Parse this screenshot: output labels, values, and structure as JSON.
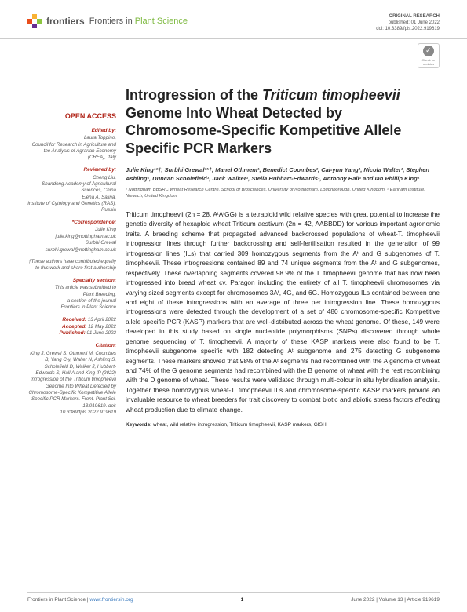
{
  "header": {
    "logo_text": "frontiers",
    "journal_prefix": "Frontiers in ",
    "journal_name": "Plant Science",
    "article_type": "ORIGINAL RESEARCH",
    "published": "published: 01 June 2022",
    "doi": "doi: 10.3389/fpls.2022.919619",
    "check_label": "Check for updates"
  },
  "sidebar": {
    "open_access": "OPEN ACCESS",
    "edited_by_heading": "Edited by:",
    "edited_by_name": "Laura Toppino,",
    "edited_by_affil": "Council for Research in Agriculture and the Analysis of Agrarian Economy (CREA), Italy",
    "reviewed_by_heading": "Reviewed by:",
    "rev1_name": "Cheng Liu,",
    "rev1_affil": "Shandong Academy of Agricultural Sciences, China",
    "rev2_name": "Elena A. Salina,",
    "rev2_affil": "Institute of Cytology and Genetics (RAS), Russia",
    "correspondence_heading": "*Correspondence:",
    "corr1_name": "Julie King",
    "corr1_email": "julie.king@nottingham.ac.uk",
    "corr2_name": "Surbhi Grewal",
    "corr2_email": "surbhi.grewal@nottingham.ac.uk",
    "contrib_note": "†These authors have contributed equally to this work and share first authorship",
    "specialty_heading": "Specialty section:",
    "specialty_text1": "This article was submitted to",
    "specialty_text2": "Plant Breeding,",
    "specialty_text3": "a section of the journal",
    "specialty_text4": "Frontiers in Plant Science",
    "received_label": "Received:",
    "received_date": "13 April 2022",
    "accepted_label": "Accepted:",
    "accepted_date": "12 May 2022",
    "published_label": "Published:",
    "published_date": "01 June 2022",
    "citation_heading": "Citation:",
    "citation_text": "King J, Grewal S, Othmeni M, Coombes B, Yang C-y, Walter N, Ashling S, Scholefield D, Walker J, Hubbart-Edwards S, Hall A and King IP (2022) Introgression of the Triticum timopheevii Genome Into Wheat Detected by Chromosome-Specific Kompetitive Allele Specific PCR Markers. Front. Plant Sci. 13:919619. doi: 10.3389/fpls.2022.919619"
  },
  "article": {
    "title_1": "Introgression of the ",
    "title_em1": "Triticum timopheevii",
    "title_2": " Genome Into Wheat Detected by Chromosome-Specific Kompetitive Allele Specific PCR Markers",
    "authors": "Julie King¹*†, Surbhi Grewal¹*†, Manel Othmeni¹, Benedict Coombes², Cai-yun Yang¹, Nicola Walter¹, Stephen Ashling¹, Duncan Scholefield¹, Jack Walker¹, Stella Hubbart-Edwards¹, Anthony Hall² and Ian Phillip King¹",
    "affil1": "¹ Nottingham BBSRC Wheat Research Centre, School of Biosciences, University of Nottingham, Loughborough, United Kingdom, ² Earlham Institute, Norwich, United Kingdom",
    "abstract": "Triticum timopheevii (2n = 28, AᵗAᵗGG) is a tetraploid wild relative species with great potential to increase the genetic diversity of hexaploid wheat Triticum aestivum (2n = 42, AABBDD) for various important agronomic traits. A breeding scheme that propagated advanced backcrossed populations of wheat-T. timopheevii introgression lines through further backcrossing and self-fertilisation resulted in the generation of 99 introgression lines (ILs) that carried 309 homozygous segments from the Aᵗ and G subgenomes of T. timopheevii. These introgressions contained 89 and 74 unique segments from the Aᵗ and G subgenomes, respectively. These overlapping segments covered 98.9% of the T. timopheevii genome that has now been introgressed into bread wheat cv. Paragon including the entirety of all T. timopheevii chromosomes via varying sized segments except for chromosomes 3Aᵗ, 4G, and 6G. Homozygous ILs contained between one and eight of these introgressions with an average of three per introgression line. These homozygous introgressions were detected through the development of a set of 480 chromosome-specific Kompetitive allele specific PCR (KASP) markers that are well-distributed across the wheat genome. Of these, 149 were developed in this study based on single nucleotide polymorphisms (SNPs) discovered through whole genome sequencing of T. timopheevii. A majority of these KASP markers were also found to be T. timopheevii subgenome specific with 182 detecting Aᵗ subgenome and 275 detecting G subgenome segments. These markers showed that 98% of the Aᵗ segments had recombined with the A genome of wheat and 74% of the G genome segments had recombined with the B genome of wheat with the rest recombining with the D genome of wheat. These results were validated through multi-colour in situ hybridisation analysis. Together these homozygous wheat-T. timopheevii ILs and chromosome-specific KASP markers provide an invaluable resource to wheat breeders for trait discovery to combat biotic and abiotic stress factors affecting wheat production due to climate change.",
    "keywords_label": "Keywords: ",
    "keywords_text": "wheat, wild relative introgression, Triticum timopheevii, KASP markers, GISH"
  },
  "footer": {
    "left_1": "Frontiers in Plant Science",
    "left_url": "www.frontiersin.org",
    "pagenum": "1",
    "right": "June 2022 | Volume 13 | Article 919619"
  }
}
